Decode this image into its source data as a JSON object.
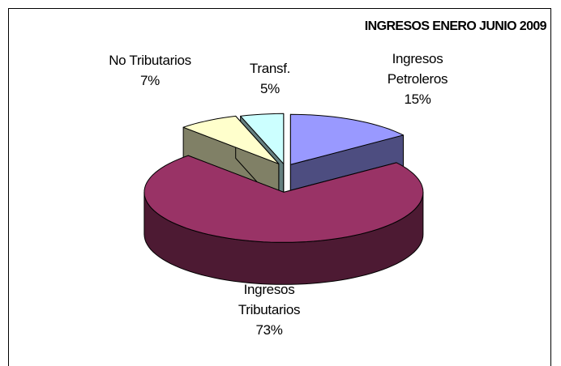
{
  "chart_data": {
    "type": "pie3d",
    "title": "INGRESOS ENERO JUNIO 2009",
    "categories": [
      "Ingresos Petroleros",
      "Ingresos Tributarios",
      "No Tributarios",
      "Transf."
    ],
    "values": [
      15,
      73,
      7,
      5
    ],
    "value_labels": [
      "15%",
      "73%",
      "7%",
      "5%"
    ],
    "colors": [
      "#9999ff",
      "#993366",
      "#ffffcc",
      "#ccffff"
    ],
    "side_colors": [
      "#4d4d80",
      "#4d1a33",
      "#808066",
      "#668080"
    ]
  }
}
